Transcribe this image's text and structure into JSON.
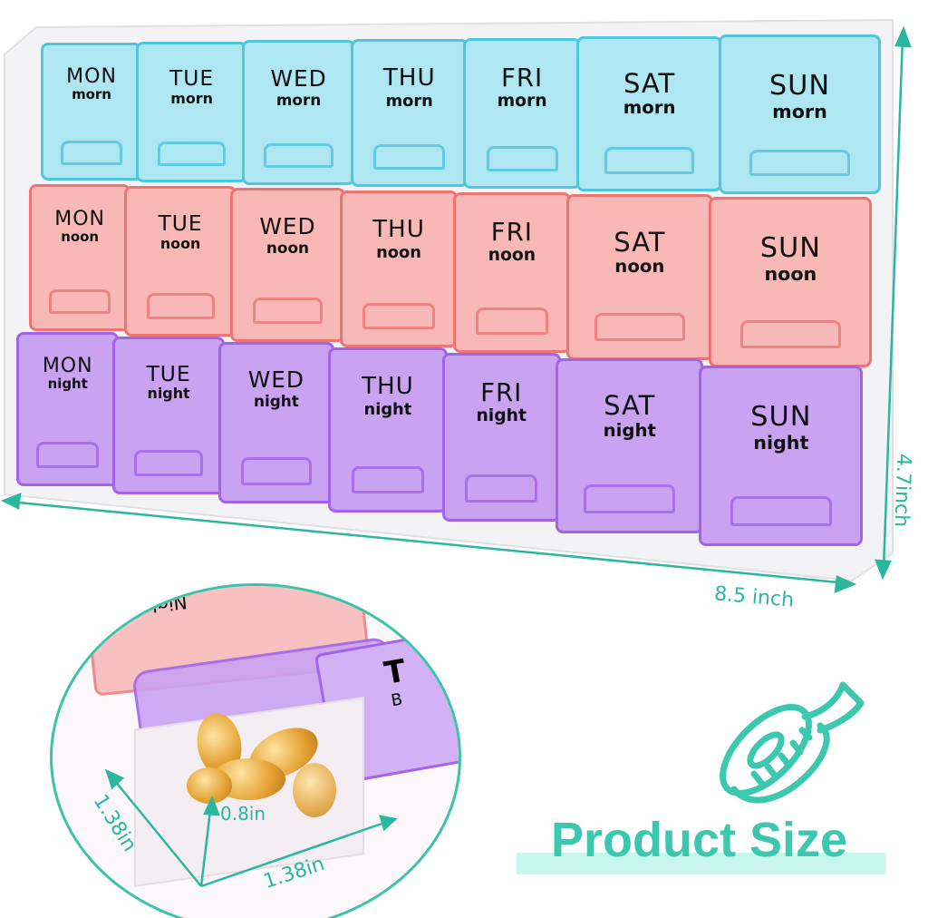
{
  "organizer": {
    "rows": [
      {
        "slot": "morn",
        "color": "#aee6f2",
        "edge": "#4ec6dc"
      },
      {
        "slot": "noon",
        "color": "#f8b9b6",
        "edge": "#ee7474"
      },
      {
        "slot": "night",
        "color": "#c9a2f2",
        "edge": "#a264ea"
      }
    ],
    "days": [
      "MON",
      "TUE",
      "WED",
      "THU",
      "FRI",
      "SAT",
      "SUN"
    ]
  },
  "dimensions": {
    "length": "8.5 inch",
    "width": "4.7inch",
    "compartment_depth": "1.38in",
    "compartment_width": "1.38in",
    "compartment_height": "0.8in"
  },
  "detail": {
    "lid_label_partial": "Night",
    "side_label_partial": "T",
    "side_label_partial_2": "B"
  },
  "title": "Product Size",
  "accent_color": "#3cc8ae",
  "icon": "tape-measure-icon"
}
